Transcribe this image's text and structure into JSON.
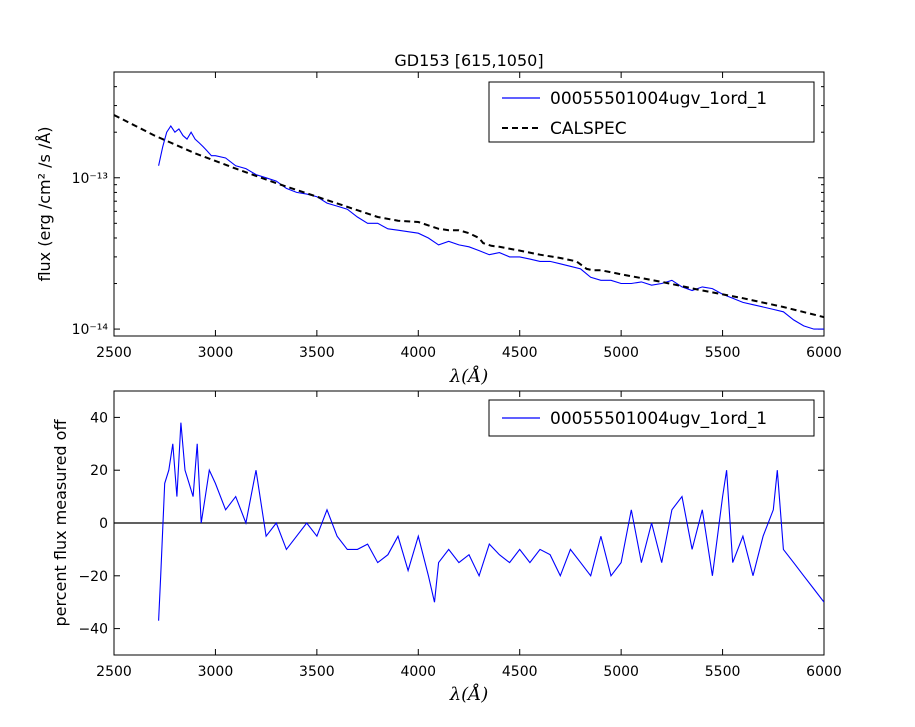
{
  "chart_data": [
    {
      "type": "line",
      "title": "GD153 [615,1050]",
      "xlabel": "λ(Å)",
      "ylabel": "flux (erg /cm²  /s /Å)",
      "xlim": [
        2500,
        6000
      ],
      "ylim": [
        9e-15,
        5e-13
      ],
      "yscale": "log",
      "xticks": [
        2500,
        3000,
        3500,
        4000,
        4500,
        5000,
        5500,
        6000
      ],
      "xtick_labels": [
        "2500",
        "3000",
        "3500",
        "4000",
        "4500",
        "5000",
        "5500",
        "6000"
      ],
      "yticks": [
        1e-14,
        1e-13
      ],
      "ytick_labels": [
        "10⁻¹⁴",
        "10⁻¹³"
      ],
      "legend_position": "top-right",
      "series": [
        {
          "name": "00055501004ugv_1ord_1",
          "color": "#0000ff",
          "style": "solid",
          "x": [
            2720,
            2740,
            2760,
            2780,
            2800,
            2820,
            2840,
            2860,
            2880,
            2900,
            2920,
            2940,
            2960,
            2980,
            3000,
            3050,
            3100,
            3150,
            3200,
            3250,
            3300,
            3350,
            3400,
            3450,
            3500,
            3550,
            3600,
            3650,
            3700,
            3750,
            3800,
            3850,
            3900,
            3950,
            4000,
            4050,
            4100,
            4150,
            4200,
            4250,
            4300,
            4350,
            4400,
            4450,
            4500,
            4550,
            4600,
            4650,
            4700,
            4750,
            4800,
            4850,
            4900,
            4950,
            5000,
            5050,
            5100,
            5150,
            5200,
            5250,
            5300,
            5350,
            5400,
            5450,
            5500,
            5550,
            5600,
            5650,
            5700,
            5750,
            5800,
            5850,
            5900,
            5950,
            6000
          ],
          "y": [
            1.2e-13,
            1.6e-13,
            2e-13,
            2.2e-13,
            2e-13,
            2.1e-13,
            1.9e-13,
            1.8e-13,
            2e-13,
            1.8e-13,
            1.7e-13,
            1.6e-13,
            1.5e-13,
            1.4e-13,
            1.4e-13,
            1.35e-13,
            1.2e-13,
            1.15e-13,
            1.05e-13,
            1e-13,
            9.5e-14,
            8.5e-14,
            8e-14,
            7.8e-14,
            7.5e-14,
            6.8e-14,
            6.5e-14,
            6.2e-14,
            5.5e-14,
            5e-14,
            5e-14,
            4.6e-14,
            4.5e-14,
            4.4e-14,
            4.3e-14,
            4e-14,
            3.6e-14,
            3.8e-14,
            3.6e-14,
            3.5e-14,
            3.3e-14,
            3.1e-14,
            3.2e-14,
            3e-14,
            3e-14,
            2.9e-14,
            2.8e-14,
            2.8e-14,
            2.7e-14,
            2.6e-14,
            2.5e-14,
            2.2e-14,
            2.1e-14,
            2.1e-14,
            2e-14,
            2e-14,
            2.05e-14,
            1.95e-14,
            2e-14,
            2.1e-14,
            1.9e-14,
            1.8e-14,
            1.9e-14,
            1.85e-14,
            1.7e-14,
            1.6e-14,
            1.5e-14,
            1.45e-14,
            1.4e-14,
            1.35e-14,
            1.3e-14,
            1.15e-14,
            1.05e-14,
            1e-14,
            1e-14
          ]
        },
        {
          "name": "CALSPEC",
          "color": "#000000",
          "style": "dashed",
          "x": [
            2500,
            2700,
            2900,
            3100,
            3300,
            3500,
            3700,
            3800,
            3900,
            4000,
            4100,
            4150,
            4200,
            4250,
            4300,
            4320,
            4360,
            4400,
            4500,
            4600,
            4700,
            4780,
            4830,
            4860,
            4900,
            5000,
            5200,
            5400,
            5600,
            5800,
            6000
          ],
          "y": [
            2.6e-13,
            1.9e-13,
            1.45e-13,
            1.15e-13,
            9.2e-14,
            7.5e-14,
            6.1e-14,
            5.5e-14,
            5.2e-14,
            5.1e-14,
            4.6e-14,
            4.5e-14,
            4.5e-14,
            4.3e-14,
            4e-14,
            3.7e-14,
            3.55e-14,
            3.5e-14,
            3.3e-14,
            3.1e-14,
            2.95e-14,
            2.8e-14,
            2.5e-14,
            2.45e-14,
            2.45e-14,
            2.3e-14,
            2.05e-14,
            1.8e-14,
            1.6e-14,
            1.4e-14,
            1.2e-14
          ]
        }
      ]
    },
    {
      "type": "line",
      "title": "",
      "xlabel": "λ(Å)",
      "ylabel": "percent flux measured off",
      "xlim": [
        2500,
        6000
      ],
      "ylim": [
        -50,
        50
      ],
      "xticks": [
        2500,
        3000,
        3500,
        4000,
        4500,
        5000,
        5500,
        6000
      ],
      "xtick_labels": [
        "2500",
        "3000",
        "3500",
        "4000",
        "4500",
        "5000",
        "5500",
        "6000"
      ],
      "yticks": [
        -40,
        -20,
        0,
        20,
        40
      ],
      "ytick_labels": [
        "−40",
        "−20",
        "0",
        "20",
        "40"
      ],
      "reference_line": 0,
      "legend_position": "top-right",
      "series": [
        {
          "name": "00055501004ugv_1ord_1",
          "color": "#0000ff",
          "style": "solid",
          "x": [
            2720,
            2730,
            2750,
            2770,
            2790,
            2810,
            2830,
            2850,
            2870,
            2890,
            2910,
            2930,
            2950,
            2970,
            3000,
            3050,
            3100,
            3150,
            3200,
            3250,
            3300,
            3350,
            3400,
            3450,
            3500,
            3550,
            3600,
            3650,
            3700,
            3750,
            3800,
            3850,
            3900,
            3950,
            4000,
            4050,
            4080,
            4100,
            4150,
            4200,
            4250,
            4300,
            4350,
            4400,
            4450,
            4500,
            4550,
            4600,
            4650,
            4700,
            4750,
            4800,
            4850,
            4900,
            4950,
            5000,
            5050,
            5100,
            5150,
            5200,
            5250,
            5300,
            5350,
            5400,
            5450,
            5500,
            5520,
            5550,
            5600,
            5650,
            5700,
            5750,
            5770,
            5800,
            5850,
            5900,
            5950,
            6000
          ],
          "y": [
            -37,
            -20,
            15,
            20,
            30,
            10,
            38,
            20,
            15,
            10,
            30,
            0,
            10,
            20,
            15,
            5,
            10,
            0,
            20,
            -5,
            0,
            -10,
            -5,
            0,
            -5,
            5,
            -5,
            -10,
            -10,
            -8,
            -15,
            -12,
            -5,
            -18,
            -5,
            -20,
            -30,
            -15,
            -10,
            -15,
            -12,
            -20,
            -8,
            -12,
            -15,
            -10,
            -15,
            -10,
            -12,
            -20,
            -10,
            -15,
            -20,
            -5,
            -20,
            -15,
            5,
            -15,
            0,
            -15,
            5,
            10,
            -10,
            5,
            -20,
            10,
            20,
            -15,
            -5,
            -20,
            -5,
            5,
            20,
            -10,
            -15,
            -20,
            -25,
            -30
          ]
        }
      ]
    }
  ]
}
